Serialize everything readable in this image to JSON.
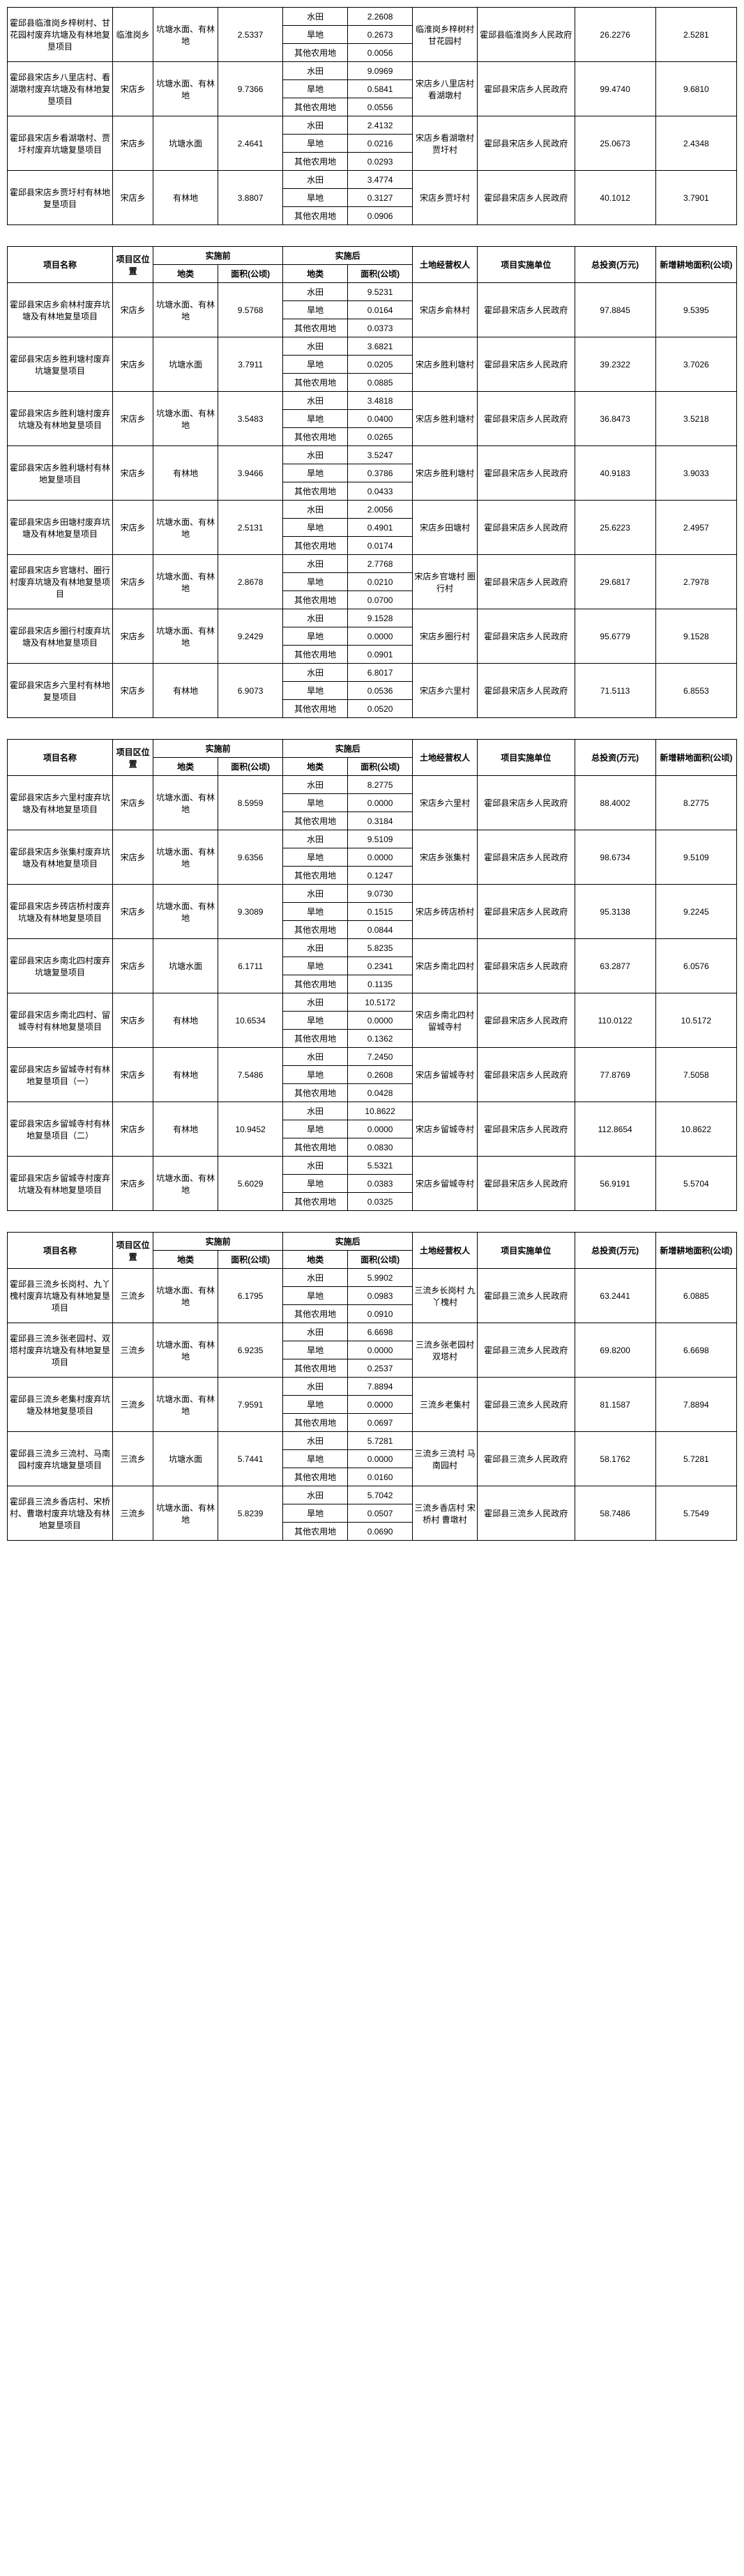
{
  "headers": {
    "name": "项目名称",
    "loc": "项目区位置",
    "before": "实施前",
    "after": "实施后",
    "type": "地类",
    "area": "面积(公顷)",
    "owner": "土地经营权人",
    "unit": "项目实施单位",
    "invest": "总投资(万元)",
    "newarea": "新增耕地面积(公顷)"
  },
  "subtypes": {
    "paddy": "水田",
    "dry": "旱地",
    "other": "其他农用地"
  },
  "blocks": [
    {
      "showHeader": false,
      "rows": [
        {
          "name": "霍邱县临淮岗乡梓树村、甘花园村废弃坑塘及有林地复垦项目",
          "loc": "临淮岗乡",
          "beforeType": "坑塘水面、有林地",
          "beforeArea": "2.5337",
          "after": [
            [
              "水田",
              "2.2608"
            ],
            [
              "旱地",
              "0.2673"
            ],
            [
              "其他农用地",
              "0.0056"
            ]
          ],
          "owner": "临淮岗乡梓树村 甘花园村",
          "unit": "霍邱县临淮岗乡人民政府",
          "invest": "26.2276",
          "newarea": "2.5281"
        },
        {
          "name": "霍邱县宋店乡八里店村、看湖墩村废弃坑塘及有林地复垦项目",
          "loc": "宋店乡",
          "beforeType": "坑塘水面、有林地",
          "beforeArea": "9.7366",
          "after": [
            [
              "水田",
              "9.0969"
            ],
            [
              "旱地",
              "0.5841"
            ],
            [
              "其他农用地",
              "0.0556"
            ]
          ],
          "owner": "宋店乡八里店村 看湖墩村",
          "unit": "霍邱县宋店乡人民政府",
          "invest": "99.4740",
          "newarea": "9.6810"
        },
        {
          "name": "霍邱县宋店乡看湖墩村、贾圩村废弃坑塘复垦项目",
          "loc": "宋店乡",
          "beforeType": "坑塘水面",
          "beforeArea": "2.4641",
          "after": [
            [
              "水田",
              "2.4132"
            ],
            [
              "旱地",
              "0.0216"
            ],
            [
              "其他农用地",
              "0.0293"
            ]
          ],
          "owner": "宋店乡看湖墩村 贾圩村",
          "unit": "霍邱县宋店乡人民政府",
          "invest": "25.0673",
          "newarea": "2.4348"
        },
        {
          "name": "霍邱县宋店乡贾圩村有林地复垦项目",
          "loc": "宋店乡",
          "beforeType": "有林地",
          "beforeArea": "3.8807",
          "after": [
            [
              "水田",
              "3.4774"
            ],
            [
              "旱地",
              "0.3127"
            ],
            [
              "其他农用地",
              "0.0906"
            ]
          ],
          "owner": "宋店乡贾圩村",
          "unit": "霍邱县宋店乡人民政府",
          "invest": "40.1012",
          "newarea": "3.7901"
        }
      ]
    },
    {
      "showHeader": true,
      "rows": [
        {
          "name": "霍邱县宋店乡俞林村废弃坑塘及有林地复垦项目",
          "loc": "宋店乡",
          "beforeType": "坑塘水面、有林地",
          "beforeArea": "9.5768",
          "after": [
            [
              "水田",
              "9.5231"
            ],
            [
              "旱地",
              "0.0164"
            ],
            [
              "其他农用地",
              "0.0373"
            ]
          ],
          "owner": "宋店乡俞林村",
          "unit": "霍邱县宋店乡人民政府",
          "invest": "97.8845",
          "newarea": "9.5395"
        },
        {
          "name": "霍邱县宋店乡胜利塘村废弃坑塘复垦项目",
          "loc": "宋店乡",
          "beforeType": "坑塘水面",
          "beforeArea": "3.7911",
          "after": [
            [
              "水田",
              "3.6821"
            ],
            [
              "旱地",
              "0.0205"
            ],
            [
              "其他农用地",
              "0.0885"
            ]
          ],
          "owner": "宋店乡胜利塘村",
          "unit": "霍邱县宋店乡人民政府",
          "invest": "39.2322",
          "newarea": "3.7026"
        },
        {
          "name": "霍邱县宋店乡胜利塘村废弃坑塘及有林地复垦项目",
          "loc": "宋店乡",
          "beforeType": "坑塘水面、有林地",
          "beforeArea": "3.5483",
          "after": [
            [
              "水田",
              "3.4818"
            ],
            [
              "旱地",
              "0.0400"
            ],
            [
              "其他农用地",
              "0.0265"
            ]
          ],
          "owner": "宋店乡胜利塘村",
          "unit": "霍邱县宋店乡人民政府",
          "invest": "36.8473",
          "newarea": "3.5218"
        },
        {
          "name": "霍邱县宋店乡胜利塘村有林地复垦项目",
          "loc": "宋店乡",
          "beforeType": "有林地",
          "beforeArea": "3.9466",
          "after": [
            [
              "水田",
              "3.5247"
            ],
            [
              "旱地",
              "0.3786"
            ],
            [
              "其他农用地",
              "0.0433"
            ]
          ],
          "owner": "宋店乡胜利塘村",
          "unit": "霍邱县宋店乡人民政府",
          "invest": "40.9183",
          "newarea": "3.9033"
        },
        {
          "name": "霍邱县宋店乡田塘村废弃坑塘及有林地复垦项目",
          "loc": "宋店乡",
          "beforeType": "坑塘水面、有林地",
          "beforeArea": "2.5131",
          "after": [
            [
              "水田",
              "2.0056"
            ],
            [
              "旱地",
              "0.4901"
            ],
            [
              "其他农用地",
              "0.0174"
            ]
          ],
          "owner": "宋店乡田塘村",
          "unit": "霍邱县宋店乡人民政府",
          "invest": "25.6223",
          "newarea": "2.4957"
        },
        {
          "name": "霍邱县宋店乡官塘村、圈行村废弃坑塘及有林地复垦项目",
          "loc": "宋店乡",
          "beforeType": "坑塘水面、有林地",
          "beforeArea": "2.8678",
          "after": [
            [
              "水田",
              "2.7768"
            ],
            [
              "旱地",
              "0.0210"
            ],
            [
              "其他农用地",
              "0.0700"
            ]
          ],
          "owner": "宋店乡官塘村 圈行村",
          "unit": "霍邱县宋店乡人民政府",
          "invest": "29.6817",
          "newarea": "2.7978"
        },
        {
          "name": "霍邱县宋店乡圈行村废弃坑塘及有林地复垦项目",
          "loc": "宋店乡",
          "beforeType": "坑塘水面、有林地",
          "beforeArea": "9.2429",
          "after": [
            [
              "水田",
              "9.1528"
            ],
            [
              "旱地",
              "0.0000"
            ],
            [
              "其他农用地",
              "0.0901"
            ]
          ],
          "owner": "宋店乡圈行村",
          "unit": "霍邱县宋店乡人民政府",
          "invest": "95.6779",
          "newarea": "9.1528"
        },
        {
          "name": "霍邱县宋店乡六里村有林地复垦项目",
          "loc": "宋店乡",
          "beforeType": "有林地",
          "beforeArea": "6.9073",
          "after": [
            [
              "水田",
              "6.8017"
            ],
            [
              "旱地",
              "0.0536"
            ],
            [
              "其他农用地",
              "0.0520"
            ]
          ],
          "owner": "宋店乡六里村",
          "unit": "霍邱县宋店乡人民政府",
          "invest": "71.5113",
          "newarea": "6.8553"
        }
      ]
    },
    {
      "showHeader": true,
      "rows": [
        {
          "name": "霍邱县宋店乡六里村废弃坑塘及有林地复垦项目",
          "loc": "宋店乡",
          "beforeType": "坑塘水面、有林地",
          "beforeArea": "8.5959",
          "after": [
            [
              "水田",
              "8.2775"
            ],
            [
              "旱地",
              "0.0000"
            ],
            [
              "其他农用地",
              "0.3184"
            ]
          ],
          "owner": "宋店乡六里村",
          "unit": "霍邱县宋店乡人民政府",
          "invest": "88.4002",
          "newarea": "8.2775"
        },
        {
          "name": "霍邱县宋店乡张集村废弃坑塘及有林地复垦项目",
          "loc": "宋店乡",
          "beforeType": "坑塘水面、有林地",
          "beforeArea": "9.6356",
          "after": [
            [
              "水田",
              "9.5109"
            ],
            [
              "旱地",
              "0.0000"
            ],
            [
              "其他农用地",
              "0.1247"
            ]
          ],
          "owner": "宋店乡张集村",
          "unit": "霍邱县宋店乡人民政府",
          "invest": "98.6734",
          "newarea": "9.5109"
        },
        {
          "name": "霍邱县宋店乡砖店桥村废弃坑塘及有林地复垦项目",
          "loc": "宋店乡",
          "beforeType": "坑塘水面、有林地",
          "beforeArea": "9.3089",
          "after": [
            [
              "水田",
              "9.0730"
            ],
            [
              "旱地",
              "0.1515"
            ],
            [
              "其他农用地",
              "0.0844"
            ]
          ],
          "owner": "宋店乡砖店桥村",
          "unit": "霍邱县宋店乡人民政府",
          "invest": "95.3138",
          "newarea": "9.2245"
        },
        {
          "name": "霍邱县宋店乡南北四村废弃坑塘复垦项目",
          "loc": "宋店乡",
          "beforeType": "坑塘水面",
          "beforeArea": "6.1711",
          "after": [
            [
              "水田",
              "5.8235"
            ],
            [
              "旱地",
              "0.2341"
            ],
            [
              "其他农用地",
              "0.1135"
            ]
          ],
          "owner": "宋店乡南北四村",
          "unit": "霍邱县宋店乡人民政府",
          "invest": "63.2877",
          "newarea": "6.0576"
        },
        {
          "name": "霍邱县宋店乡南北四村、留城寺村有林地复垦项目",
          "loc": "宋店乡",
          "beforeType": "有林地",
          "beforeArea": "10.6534",
          "after": [
            [
              "水田",
              "10.5172"
            ],
            [
              "旱地",
              "0.0000"
            ],
            [
              "其他农用地",
              "0.1362"
            ]
          ],
          "owner": "宋店乡南北四村 留城寺村",
          "unit": "霍邱县宋店乡人民政府",
          "invest": "110.0122",
          "newarea": "10.5172"
        },
        {
          "name": "霍邱县宋店乡留城寺村有林地复垦项目（一）",
          "loc": "宋店乡",
          "beforeType": "有林地",
          "beforeArea": "7.5486",
          "after": [
            [
              "水田",
              "7.2450"
            ],
            [
              "旱地",
              "0.2608"
            ],
            [
              "其他农用地",
              "0.0428"
            ]
          ],
          "owner": "宋店乡留城寺村",
          "unit": "霍邱县宋店乡人民政府",
          "invest": "77.8769",
          "newarea": "7.5058"
        },
        {
          "name": "霍邱县宋店乡留城寺村有林地复垦项目（二）",
          "loc": "宋店乡",
          "beforeType": "有林地",
          "beforeArea": "10.9452",
          "after": [
            [
              "水田",
              "10.8622"
            ],
            [
              "旱地",
              "0.0000"
            ],
            [
              "其他农用地",
              "0.0830"
            ]
          ],
          "owner": "宋店乡留城寺村",
          "unit": "霍邱县宋店乡人民政府",
          "invest": "112.8654",
          "newarea": "10.8622"
        },
        {
          "name": "霍邱县宋店乡留城寺村废弃坑塘及有林地复垦项目",
          "loc": "宋店乡",
          "beforeType": "坑塘水面、有林地",
          "beforeArea": "5.6029",
          "after": [
            [
              "水田",
              "5.5321"
            ],
            [
              "旱地",
              "0.0383"
            ],
            [
              "其他农用地",
              "0.0325"
            ]
          ],
          "owner": "宋店乡留城寺村",
          "unit": "霍邱县宋店乡人民政府",
          "invest": "56.9191",
          "newarea": "5.5704"
        }
      ]
    },
    {
      "showHeader": true,
      "rows": [
        {
          "name": "霍邱县三流乡长岗村、九丫槐村废弃坑塘及有林地复垦项目",
          "loc": "三流乡",
          "beforeType": "坑塘水面、有林地",
          "beforeArea": "6.1795",
          "after": [
            [
              "水田",
              "5.9902"
            ],
            [
              "旱地",
              "0.0983"
            ],
            [
              "其他农用地",
              "0.0910"
            ]
          ],
          "owner": "三流乡长岗村 九丫槐村",
          "unit": "霍邱县三流乡人民政府",
          "invest": "63.2441",
          "newarea": "6.0885"
        },
        {
          "name": "霍邱县三流乡张老园村、双塔村废弃坑塘及有林地复垦项目",
          "loc": "三流乡",
          "beforeType": "坑塘水面、有林地",
          "beforeArea": "6.9235",
          "after": [
            [
              "水田",
              "6.6698"
            ],
            [
              "旱地",
              "0.0000"
            ],
            [
              "其他农用地",
              "0.2537"
            ]
          ],
          "owner": "三流乡张老园村 双塔村",
          "unit": "霍邱县三流乡人民政府",
          "invest": "69.8200",
          "newarea": "6.6698"
        },
        {
          "name": "霍邱县三流乡老集村废弃坑塘及林地复垦项目",
          "loc": "三流乡",
          "beforeType": "坑塘水面、有林地",
          "beforeArea": "7.9591",
          "after": [
            [
              "水田",
              "7.8894"
            ],
            [
              "旱地",
              "0.0000"
            ],
            [
              "其他农用地",
              "0.0697"
            ]
          ],
          "owner": "三流乡老集村",
          "unit": "霍邱县三流乡人民政府",
          "invest": "81.1587",
          "newarea": "7.8894"
        },
        {
          "name": "霍邱县三流乡三流村、马南园村废弃坑塘复垦项目",
          "loc": "三流乡",
          "beforeType": "坑塘水面",
          "beforeArea": "5.7441",
          "after": [
            [
              "水田",
              "5.7281"
            ],
            [
              "旱地",
              "0.0000"
            ],
            [
              "其他农用地",
              "0.0160"
            ]
          ],
          "owner": "三流乡三流村 马南园村",
          "unit": "霍邱县三流乡人民政府",
          "invest": "58.1762",
          "newarea": "5.7281"
        },
        {
          "name": "霍邱县三流乡香店村、宋桥村、曹墩村废弃坑塘及有林地复垦项目",
          "loc": "三流乡",
          "beforeType": "坑塘水面、有林地",
          "beforeArea": "5.8239",
          "after": [
            [
              "水田",
              "5.7042"
            ],
            [
              "旱地",
              "0.0507"
            ],
            [
              "其他农用地",
              "0.0690"
            ]
          ],
          "owner": "三流乡香店村 宋桥村 曹墩村",
          "unit": "霍邱县三流乡人民政府",
          "invest": "58.7486",
          "newarea": "5.7549"
        }
      ]
    }
  ]
}
